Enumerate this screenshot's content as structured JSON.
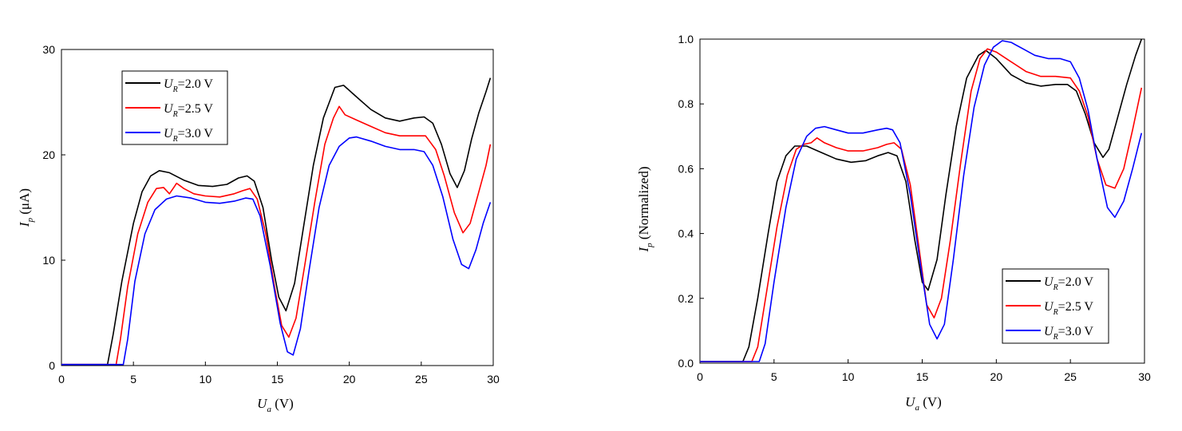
{
  "chart_data": [
    {
      "type": "line",
      "title": "",
      "xlabel": {
        "main": "U",
        "sub": "a",
        "unit": " (V)"
      },
      "ylabel": {
        "main": "I",
        "sub": "p",
        "unit": " (μA)"
      },
      "xlim": [
        0,
        30
      ],
      "ylim": [
        0,
        30
      ],
      "xticks": [
        0,
        5,
        10,
        15,
        20,
        25,
        30
      ],
      "yticks": [
        0,
        10,
        20,
        30
      ],
      "ytick_labels": [
        "0",
        "10",
        "20",
        "30"
      ],
      "grid": false,
      "legend_position": "top-left",
      "series": [
        {
          "name": "U_R=2.0 V",
          "legend_main": "U",
          "legend_sub": "R",
          "legend_rest": "=2.0 V",
          "color": "#000000",
          "x": [
            0,
            3.2,
            3.6,
            4.2,
            5.0,
            5.6,
            6.2,
            6.8,
            7.5,
            8.5,
            9.5,
            10.5,
            11.5,
            12.3,
            12.9,
            13.4,
            14.0,
            14.6,
            15.1,
            15.6,
            16.2,
            16.8,
            17.5,
            18.2,
            19.0,
            19.6,
            20.5,
            21.5,
            22.5,
            23.5,
            24.5,
            25.2,
            25.8,
            26.4,
            27.0,
            27.5,
            28.0,
            28.5,
            29.0,
            29.5,
            29.8
          ],
          "y": [
            0.1,
            0.1,
            3.0,
            8.0,
            13.5,
            16.5,
            18.0,
            18.5,
            18.3,
            17.6,
            17.1,
            17.0,
            17.2,
            17.8,
            18.0,
            17.5,
            15.0,
            10.0,
            6.5,
            5.2,
            7.8,
            13.0,
            19.0,
            23.5,
            26.4,
            26.6,
            25.5,
            24.3,
            23.5,
            23.2,
            23.5,
            23.6,
            23.0,
            21.0,
            18.2,
            16.9,
            18.5,
            21.5,
            24.0,
            26.0,
            27.3
          ]
        },
        {
          "name": "U_R=2.5 V",
          "legend_main": "U",
          "legend_sub": "R",
          "legend_rest": "=2.5 V",
          "color": "#ff0000",
          "x": [
            0,
            3.8,
            4.1,
            4.6,
            5.3,
            6.0,
            6.6,
            7.1,
            7.5,
            7.8,
            8.0,
            8.5,
            9.2,
            10.0,
            11.0,
            12.0,
            12.6,
            13.1,
            13.6,
            14.2,
            14.8,
            15.3,
            15.8,
            16.3,
            16.9,
            17.6,
            18.3,
            18.9,
            19.3,
            19.7,
            20.5,
            21.5,
            22.5,
            23.5,
            24.5,
            25.3,
            26.0,
            26.6,
            27.3,
            27.9,
            28.4,
            29.0,
            29.5,
            29.8
          ],
          "y": [
            0.1,
            0.1,
            2.5,
            7.5,
            12.5,
            15.5,
            16.8,
            16.9,
            16.3,
            16.9,
            17.3,
            16.8,
            16.3,
            16.1,
            16.0,
            16.3,
            16.6,
            16.8,
            15.8,
            12.5,
            7.5,
            3.8,
            2.7,
            4.5,
            9.5,
            15.5,
            21.0,
            23.5,
            24.6,
            23.8,
            23.3,
            22.7,
            22.1,
            21.8,
            21.8,
            21.8,
            20.5,
            18.0,
            14.5,
            12.6,
            13.5,
            16.5,
            19.0,
            21.0
          ]
        },
        {
          "name": "U_R=3.0 V",
          "legend_main": "U",
          "legend_sub": "R",
          "legend_rest": "=3.0 V",
          "color": "#0000ff",
          "x": [
            0,
            4.3,
            4.6,
            5.1,
            5.8,
            6.5,
            7.3,
            8.0,
            9.0,
            10.0,
            11.0,
            12.0,
            12.8,
            13.3,
            13.8,
            14.5,
            15.2,
            15.7,
            16.1,
            16.6,
            17.2,
            17.9,
            18.6,
            19.3,
            20.0,
            20.5,
            21.5,
            22.5,
            23.5,
            24.5,
            25.2,
            25.8,
            26.5,
            27.2,
            27.8,
            28.3,
            28.8,
            29.3,
            29.8
          ],
          "y": [
            0.1,
            0.1,
            2.5,
            8.0,
            12.5,
            14.8,
            15.8,
            16.1,
            15.9,
            15.5,
            15.4,
            15.6,
            15.9,
            15.8,
            14.2,
            9.5,
            4.0,
            1.3,
            1.0,
            3.5,
            9.0,
            15.0,
            19.0,
            20.8,
            21.6,
            21.7,
            21.3,
            20.8,
            20.5,
            20.5,
            20.3,
            19.0,
            16.0,
            12.0,
            9.6,
            9.2,
            11.0,
            13.5,
            15.5
          ]
        }
      ]
    },
    {
      "type": "line",
      "title": "",
      "xlabel": {
        "main": "U",
        "sub": "a",
        "unit": " (V)"
      },
      "ylabel": {
        "main": "I",
        "sub": "p",
        "unit": " (Normalized)"
      },
      "xlim": [
        0,
        30
      ],
      "ylim": [
        0,
        1.0
      ],
      "xticks": [
        0,
        5,
        10,
        15,
        20,
        25,
        30
      ],
      "yticks": [
        0,
        0.2,
        0.4,
        0.6,
        0.8,
        1.0
      ],
      "ytick_labels": [
        "0.0",
        "0.2",
        "0.4",
        "0.6",
        "0.8",
        "1.0"
      ],
      "grid": false,
      "legend_position": "bottom-right",
      "series": [
        {
          "name": "U_R=2.0 V",
          "legend_main": "U",
          "legend_sub": "R",
          "legend_rest": "=2.0 V",
          "color": "#000000",
          "x": [
            0,
            2.9,
            3.3,
            3.9,
            4.6,
            5.2,
            5.8,
            6.4,
            7.2,
            8.2,
            9.2,
            10.2,
            11.2,
            12.0,
            12.7,
            13.3,
            13.9,
            14.5,
            15.0,
            15.4,
            16.0,
            16.6,
            17.3,
            18.0,
            18.8,
            19.3,
            20.0,
            21.0,
            22.0,
            23.0,
            24.0,
            24.8,
            25.4,
            26.0,
            26.6,
            27.2,
            27.6,
            28.2,
            28.8,
            29.4,
            29.8
          ],
          "y": [
            0.005,
            0.005,
            0.05,
            0.2,
            0.4,
            0.56,
            0.64,
            0.67,
            0.67,
            0.65,
            0.63,
            0.62,
            0.625,
            0.64,
            0.65,
            0.64,
            0.56,
            0.38,
            0.25,
            0.225,
            0.32,
            0.52,
            0.73,
            0.88,
            0.95,
            0.965,
            0.94,
            0.89,
            0.865,
            0.855,
            0.86,
            0.86,
            0.84,
            0.77,
            0.68,
            0.635,
            0.66,
            0.76,
            0.86,
            0.95,
            1.0
          ]
        },
        {
          "name": "U_R=2.5 V",
          "legend_main": "U",
          "legend_sub": "R",
          "legend_rest": "=2.5 V",
          "color": "#ff0000",
          "x": [
            0,
            3.5,
            3.9,
            4.5,
            5.2,
            5.9,
            6.5,
            7.0,
            7.5,
            7.9,
            8.4,
            9.2,
            10.0,
            11.0,
            12.0,
            12.6,
            13.1,
            13.6,
            14.2,
            14.8,
            15.3,
            15.8,
            16.3,
            16.9,
            17.6,
            18.3,
            18.9,
            19.4,
            20.0,
            21.0,
            22.0,
            23.0,
            24.0,
            25.0,
            25.6,
            26.2,
            26.8,
            27.4,
            28.0,
            28.6,
            29.2,
            29.8
          ],
          "y": [
            0.005,
            0.005,
            0.05,
            0.22,
            0.42,
            0.58,
            0.66,
            0.675,
            0.68,
            0.695,
            0.68,
            0.665,
            0.655,
            0.655,
            0.665,
            0.675,
            0.68,
            0.66,
            0.55,
            0.35,
            0.18,
            0.14,
            0.2,
            0.38,
            0.62,
            0.84,
            0.94,
            0.97,
            0.96,
            0.93,
            0.9,
            0.885,
            0.885,
            0.88,
            0.84,
            0.76,
            0.63,
            0.55,
            0.54,
            0.6,
            0.72,
            0.85
          ]
        },
        {
          "name": "U_R=3.0 V",
          "legend_main": "U",
          "legend_sub": "R",
          "legend_rest": "=3.0 V",
          "color": "#0000ff",
          "x": [
            0,
            4.0,
            4.4,
            5.0,
            5.8,
            6.5,
            7.2,
            7.8,
            8.4,
            9.2,
            10.0,
            11.0,
            12.0,
            12.6,
            13.0,
            13.5,
            14.2,
            14.9,
            15.5,
            16.0,
            16.5,
            17.1,
            17.8,
            18.5,
            19.2,
            19.8,
            20.4,
            21.0,
            21.8,
            22.6,
            23.5,
            24.3,
            25.0,
            25.6,
            26.2,
            26.8,
            27.5,
            28.0,
            28.6,
            29.2,
            29.8
          ],
          "y": [
            0.005,
            0.005,
            0.06,
            0.25,
            0.48,
            0.63,
            0.7,
            0.725,
            0.73,
            0.72,
            0.71,
            0.71,
            0.72,
            0.725,
            0.72,
            0.68,
            0.52,
            0.3,
            0.12,
            0.075,
            0.12,
            0.32,
            0.58,
            0.79,
            0.92,
            0.975,
            0.995,
            0.99,
            0.97,
            0.95,
            0.94,
            0.94,
            0.93,
            0.88,
            0.78,
            0.63,
            0.48,
            0.45,
            0.5,
            0.6,
            0.71
          ]
        }
      ]
    }
  ]
}
